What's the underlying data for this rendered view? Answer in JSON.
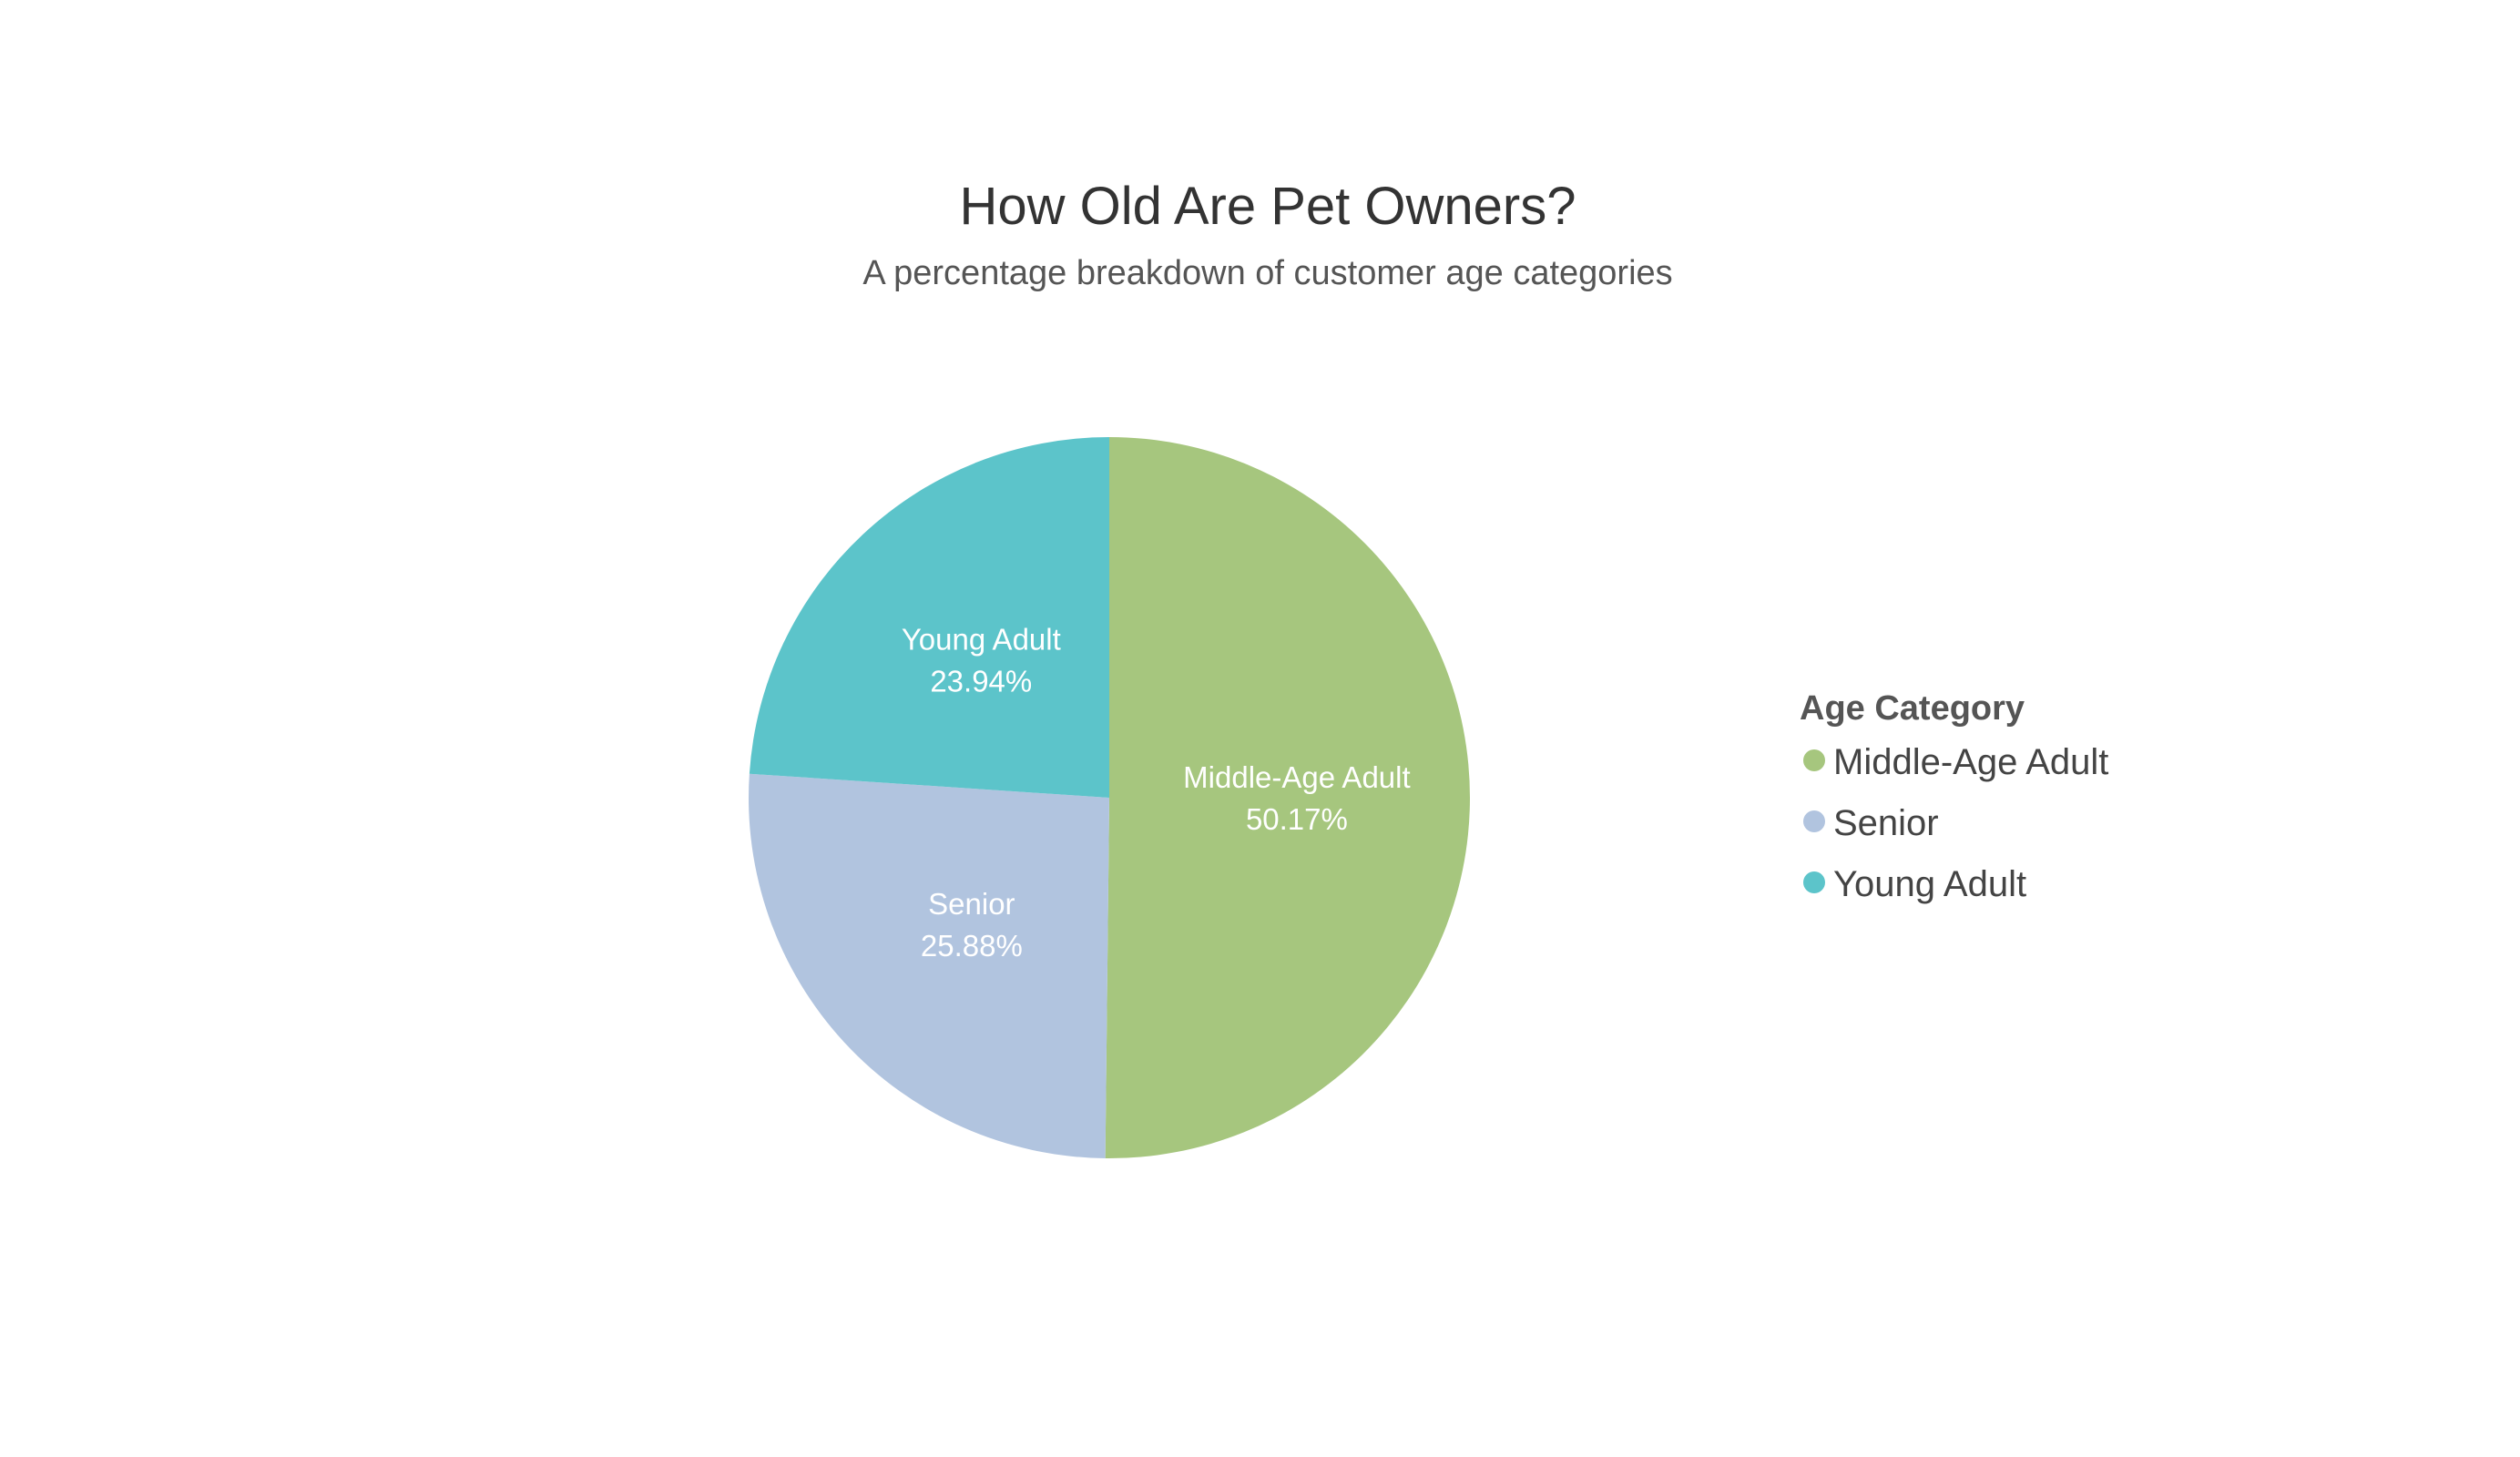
{
  "chart_data": {
    "type": "pie",
    "title": "How Old Are Pet Owners?",
    "subtitle": "A percentage breakdown of customer age categories",
    "legend_title": "Age Category",
    "legend_position": "right",
    "slices": [
      {
        "label": "Middle-Age Adult",
        "value": 50.17,
        "value_label": "50.17%",
        "color": "#a6c67e"
      },
      {
        "label": "Senior",
        "value": 25.88,
        "value_label": "25.88%",
        "color": "#b1c4df"
      },
      {
        "label": "Young Adult",
        "value": 23.94,
        "value_label": "23.94%",
        "color": "#5cc4ca"
      }
    ]
  }
}
